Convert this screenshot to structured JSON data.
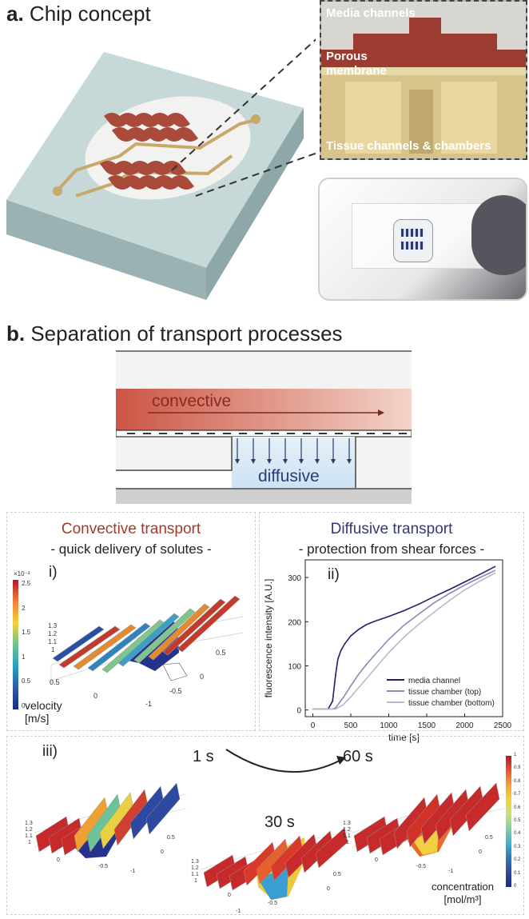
{
  "section_a": {
    "title_letter": "a.",
    "title_text": "Chip concept",
    "inset_labels": {
      "media": "Media channels",
      "membrane_line1": "Porous",
      "membrane_line2": "membrane",
      "tissue": "Tissue channels & chambers"
    }
  },
  "section_b": {
    "title_letter": "b.",
    "title_text": "Separation of transport processes",
    "schematic": {
      "convective": "convective",
      "diffusive": "diffusive"
    },
    "convective_panel": {
      "title": "Convective transport",
      "subtitle": "- quick delivery of solutes -",
      "roman": "i)",
      "colorbar_exponent": "×10⁻³",
      "colorbar_ticks": [
        "2.5",
        "2",
        "1.5",
        "1",
        "0.5",
        "0"
      ],
      "axis_ticks_z": [
        "1.3",
        "1.2",
        "1.1",
        "1"
      ],
      "axis_ticks_left": [
        "0.5",
        "0",
        "-1"
      ],
      "axis_ticks_right": [
        "0.5",
        "0",
        "-0.5"
      ],
      "legend_label_line1": "velocity",
      "legend_label_line2": "[m/s]"
    },
    "diffusive_panel": {
      "title": "Diffusive transport",
      "subtitle": "- protection from shear forces -",
      "roman": "ii)"
    },
    "concentration_panel": {
      "roman": "iii)",
      "time_1": "1 s",
      "time_30": "30 s",
      "time_60": "60 s",
      "colorbar_ticks": [
        "1",
        "0.9",
        "0.8",
        "0.7",
        "0.6",
        "0.5",
        "0.4",
        "0.3",
        "0.2",
        "0.1",
        "0"
      ],
      "z_ticks": [
        "1.3",
        "1.2",
        "1.1",
        "1"
      ],
      "plane_ticks": [
        "0.5",
        "0",
        "-0.5",
        "-1"
      ],
      "legend_label_line1": "concentration",
      "legend_label_line2": "[mol/m³]"
    }
  },
  "chart_data": {
    "type": "line",
    "xlabel": "time [s]",
    "ylabel": "fluorescence intensity [A.U.]",
    "xlim": [
      -100,
      2500
    ],
    "ylim": [
      -15,
      340
    ],
    "xticks": [
      "0",
      "500",
      "1000",
      "1500",
      "2000",
      "2500"
    ],
    "yticks": [
      "0",
      "100",
      "200",
      "300"
    ],
    "legend_position": "bottom-right",
    "series": [
      {
        "name": "media channel",
        "color": "#1f1f6e",
        "x": [
          0,
          200,
          260,
          300,
          330,
          370,
          420,
          500,
          600,
          700,
          800,
          900,
          1000,
          1200,
          1400,
          1600,
          1800,
          2000,
          2200,
          2400
        ],
        "y": [
          2,
          2,
          20,
          80,
          115,
          135,
          150,
          168,
          182,
          193,
          200,
          206,
          212,
          225,
          240,
          257,
          273,
          290,
          307,
          325
        ]
      },
      {
        "name": "tissue chamber (top)",
        "color": "#8a88b8",
        "x": [
          0,
          250,
          300,
          400,
          500,
          600,
          700,
          800,
          1000,
          1200,
          1400,
          1600,
          1800,
          2000,
          2200,
          2400
        ],
        "y": [
          2,
          2,
          5,
          28,
          55,
          80,
          102,
          122,
          160,
          192,
          218,
          243,
          264,
          283,
          300,
          316
        ]
      },
      {
        "name": "tissue chamber (bottom)",
        "color": "#b9b8cc",
        "x": [
          0,
          300,
          400,
          500,
          600,
          700,
          800,
          1000,
          1200,
          1400,
          1600,
          1800,
          2000,
          2200,
          2400
        ],
        "y": [
          2,
          2,
          12,
          30,
          50,
          70,
          90,
          130,
          165,
          195,
          222,
          248,
          272,
          292,
          310
        ]
      }
    ]
  },
  "colors": {
    "media_red": "#c0463a",
    "channel_gold": "#c9a86b",
    "convective_title": "#a23b2e",
    "diffusive_title": "#2f3a7a",
    "diffusive_blue": "#cfe3f3"
  }
}
